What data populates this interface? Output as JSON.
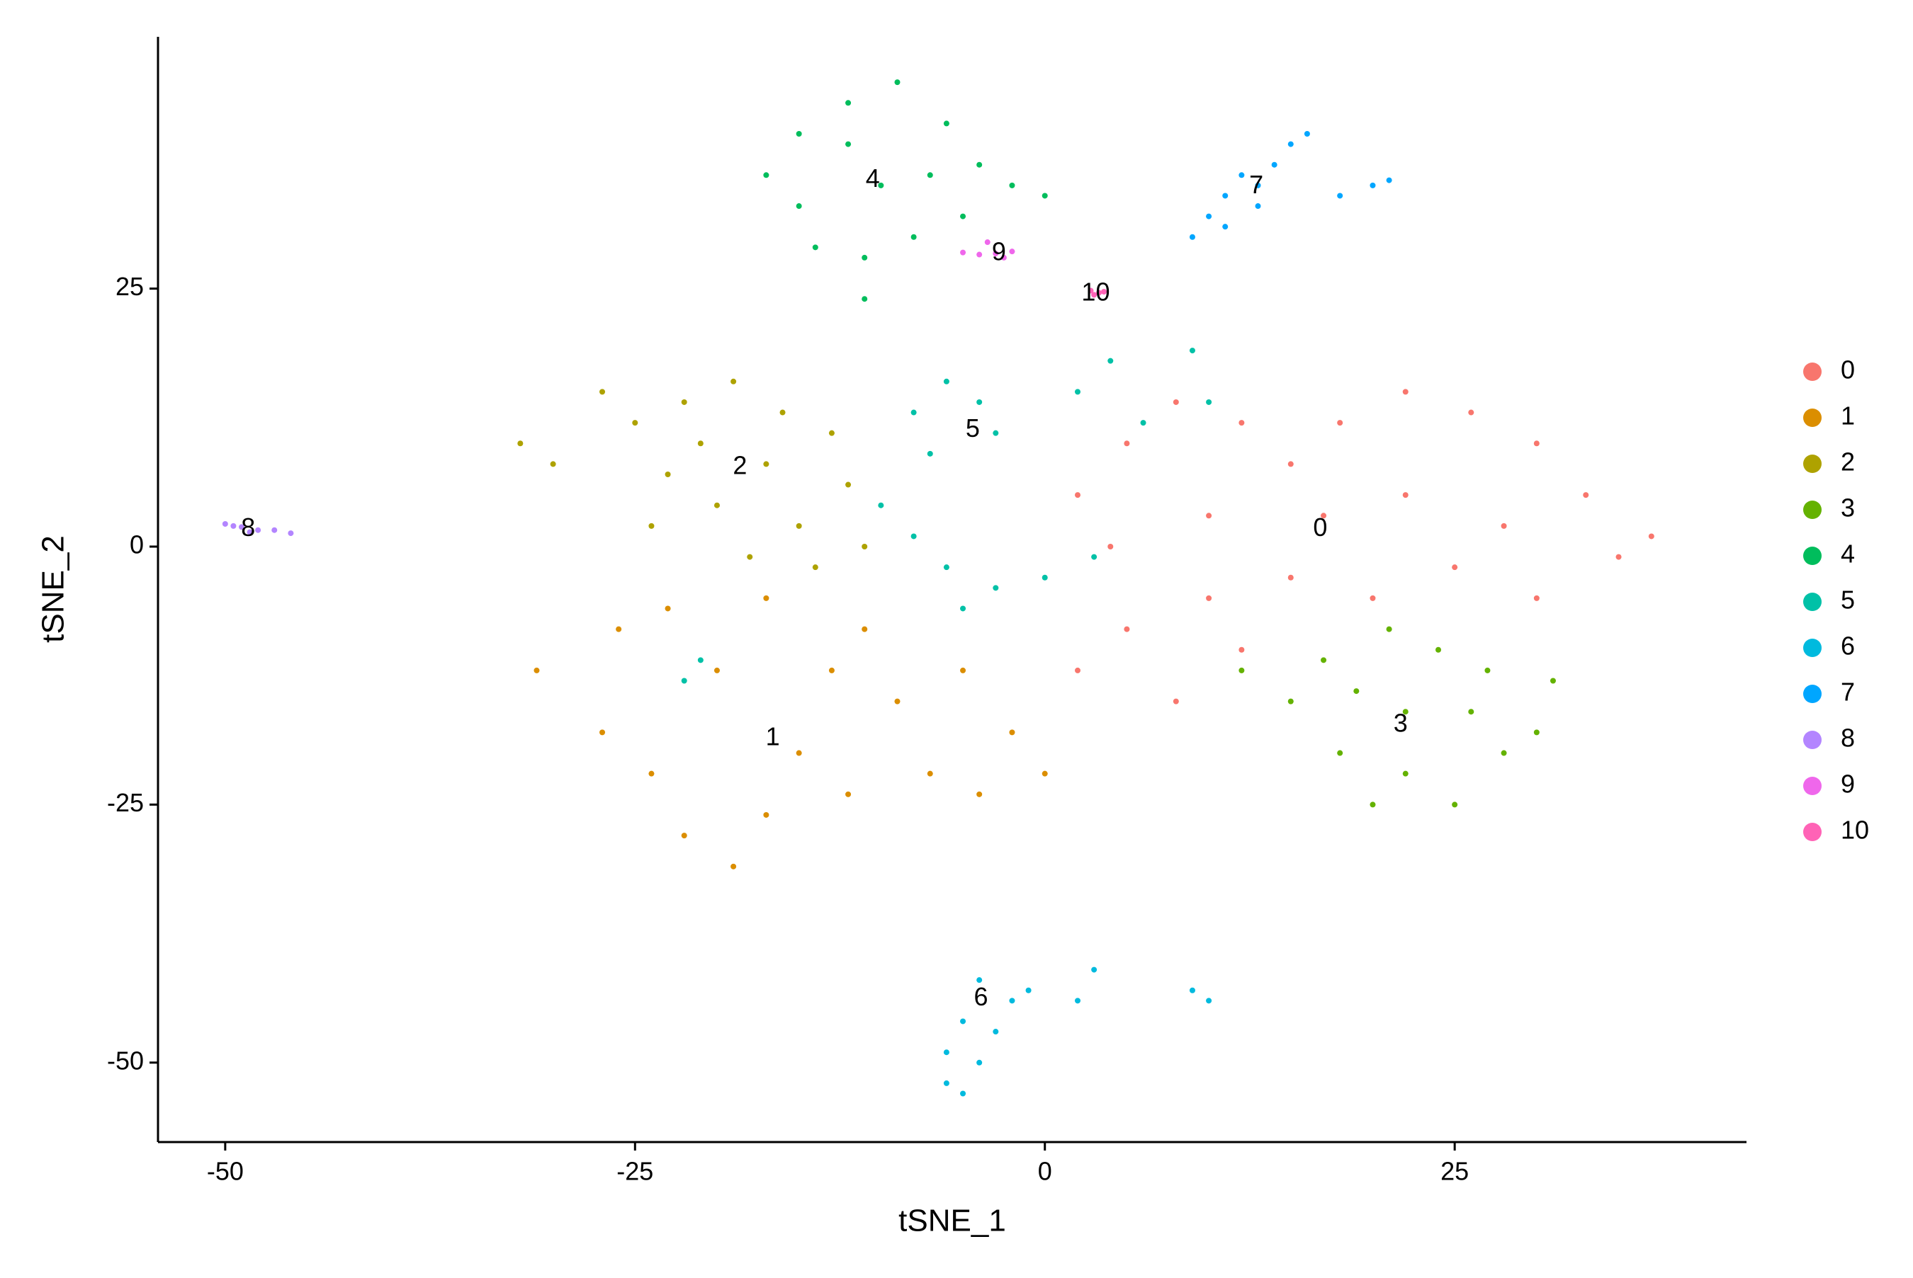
{
  "chart_data": {
    "type": "scatter",
    "xlabel": "tSNE_1",
    "ylabel": "tSNE_2",
    "xlim": [
      -54.1,
      42.8
    ],
    "ylim": [
      -57.7,
      49.4
    ],
    "xticks": [
      -50,
      -25,
      0,
      25
    ],
    "yticks": [
      -50,
      -25,
      0,
      25
    ],
    "grid": false,
    "legend": "right",
    "series": [
      {
        "name": "0",
        "color": "#F8766D",
        "label_x": 16.8,
        "label_y": 1.7,
        "x": [
          2,
          5,
          8,
          12,
          15,
          18,
          22,
          26,
          30,
          33,
          35,
          30,
          25,
          20,
          15,
          10,
          5,
          2,
          8,
          12,
          17,
          22,
          28,
          4,
          10,
          37
        ],
        "y": [
          5,
          10,
          14,
          12,
          8,
          12,
          15,
          13,
          10,
          5,
          -1,
          -5,
          -2,
          -5,
          -3,
          -5,
          -8,
          -12,
          -15,
          -10,
          3,
          5,
          2,
          0,
          3,
          1
        ]
      },
      {
        "name": "1",
        "color": "#DB8E00",
        "label_x": -16.6,
        "label_y": -18.6,
        "x": [
          -26,
          -27,
          -24,
          -22,
          -19,
          -17,
          -15,
          -13,
          -11,
          -9,
          -12,
          -7,
          -4,
          -2,
          0,
          -5,
          -20,
          -23,
          -17,
          -31
        ],
        "y": [
          -8,
          -18,
          -22,
          -28,
          -31,
          -26,
          -20,
          -12,
          -8,
          -15,
          -24,
          -22,
          -24,
          -18,
          -22,
          -12,
          -12,
          -6,
          -5,
          -12
        ]
      },
      {
        "name": "2",
        "color": "#AEA200",
        "label_x": -18.6,
        "label_y": 7.7,
        "x": [
          -32,
          -30,
          -27,
          -25,
          -22,
          -19,
          -16,
          -13,
          -12,
          -15,
          -18,
          -20,
          -23,
          -24,
          -14,
          -11,
          -17,
          -21
        ],
        "y": [
          10,
          8,
          15,
          12,
          14,
          16,
          13,
          11,
          6,
          2,
          -1,
          4,
          7,
          2,
          -2,
          0,
          8,
          10
        ]
      },
      {
        "name": "3",
        "color": "#64B200",
        "label_x": 21.7,
        "label_y": -17.3,
        "x": [
          12,
          15,
          18,
          20,
          22,
          25,
          28,
          30,
          27,
          24,
          21,
          17,
          22,
          26,
          19,
          31
        ],
        "y": [
          -12,
          -15,
          -20,
          -25,
          -22,
          -25,
          -20,
          -18,
          -12,
          -10,
          -8,
          -11,
          -16,
          -16,
          -14,
          -13
        ]
      },
      {
        "name": "4",
        "color": "#00BD5C",
        "label_x": -10.5,
        "label_y": 35.5,
        "x": [
          -17,
          -15,
          -12,
          -9,
          -6,
          -4,
          -5,
          -8,
          -11,
          -14,
          -15,
          -10,
          -7,
          -2,
          0,
          -11,
          -12
        ],
        "y": [
          36,
          40,
          43,
          45,
          41,
          37,
          32,
          30,
          28,
          29,
          33,
          35,
          36,
          35,
          34,
          24,
          39
        ]
      },
      {
        "name": "5",
        "color": "#00C1A7",
        "label_x": -4.4,
        "label_y": 11.3,
        "x": [
          -8,
          -6,
          -4,
          -7,
          -3,
          -10,
          -8,
          -6,
          -5,
          -3,
          2,
          4,
          6,
          9,
          10,
          0,
          -21,
          -22,
          3
        ],
        "y": [
          13,
          16,
          14,
          9,
          11,
          4,
          1,
          -2,
          -6,
          -4,
          15,
          18,
          12,
          19,
          14,
          -3,
          -11,
          -13,
          -1
        ]
      },
      {
        "name": "6",
        "color": "#00BADE",
        "label_x": -3.9,
        "label_y": -43.8,
        "x": [
          -6,
          -6,
          -5,
          -4,
          -3,
          -4,
          -2,
          -1,
          2,
          3,
          9,
          10,
          -5
        ],
        "y": [
          -52,
          -49,
          -46,
          -42,
          -47,
          -50,
          -44,
          -43,
          -44,
          -41,
          -43,
          -44,
          -53
        ]
      },
      {
        "name": "7",
        "color": "#00A6FF",
        "label_x": 12.9,
        "label_y": 34.9,
        "x": [
          9,
          10,
          11,
          12,
          13,
          14,
          15,
          16,
          13,
          11,
          18,
          20,
          21
        ],
        "y": [
          30,
          32,
          34,
          36,
          35,
          37,
          39,
          40,
          33,
          31,
          34,
          35,
          35.5
        ]
      },
      {
        "name": "8",
        "color": "#B385FF",
        "label_x": -48.6,
        "label_y": 1.7,
        "x": [
          -50,
          -49,
          -48,
          -47,
          -46,
          -49.5,
          -48.5
        ],
        "y": [
          2.2,
          1.9,
          1.6,
          1.6,
          1.3,
          2,
          1.4
        ]
      },
      {
        "name": "9",
        "color": "#EF67EB",
        "label_x": -2.8,
        "label_y": 28.4,
        "x": [
          -5,
          -4,
          -3,
          -2,
          -3.5,
          -2.5
        ],
        "y": [
          28.5,
          28.3,
          28.4,
          28.6,
          29.5,
          28
        ]
      },
      {
        "name": "10",
        "color": "#FF63B6",
        "label_x": 3.1,
        "label_y": 24.5,
        "x": [
          2.8,
          3.3,
          3.0,
          3.6
        ],
        "y": [
          24.8,
          24.6,
          24.4,
          24.7
        ]
      }
    ]
  }
}
